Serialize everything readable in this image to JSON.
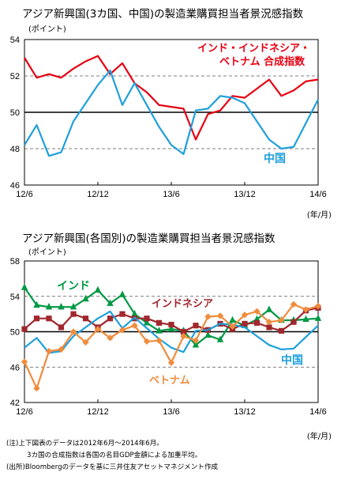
{
  "chart_data": [
    {
      "type": "line",
      "title": "アジア新興国(3カ国、中国)の製造業購買担当者景況感指数",
      "ylabel": "(ポイント)",
      "xunit": "(年/月)",
      "ylim": [
        46,
        54
      ],
      "yticks": [
        46,
        48,
        50,
        52,
        54
      ],
      "grid": "dashed at 48 and 52, solid at 50",
      "categories": [
        "12/6",
        "12/7",
        "12/8",
        "12/9",
        "12/10",
        "12/11",
        "12/12",
        "13/1",
        "13/2",
        "13/3",
        "13/4",
        "13/5",
        "13/6",
        "13/7",
        "13/8",
        "13/9",
        "13/10",
        "13/11",
        "13/12",
        "14/1",
        "14/2",
        "14/3",
        "14/4",
        "14/5",
        "14/6"
      ],
      "xticklabels": [
        "12/6",
        "12/12",
        "13/6",
        "13/12",
        "14/6"
      ],
      "series": [
        {
          "name": "インド・インドネシア・ベトナム 合成指数",
          "color": "#e60012",
          "values": [
            53.0,
            51.9,
            52.1,
            51.9,
            52.4,
            52.8,
            53.1,
            52.1,
            52.7,
            51.6,
            51.1,
            50.4,
            50.3,
            50.2,
            48.5,
            49.9,
            50.1,
            50.9,
            50.8,
            51.3,
            51.8,
            50.9,
            51.2,
            51.7,
            51.8
          ]
        },
        {
          "name": "中国",
          "color": "#1ea0dc",
          "values": [
            48.2,
            49.3,
            47.6,
            47.8,
            49.5,
            50.5,
            51.5,
            52.3,
            50.4,
            51.6,
            50.4,
            49.2,
            48.2,
            47.7,
            50.1,
            50.2,
            50.9,
            50.8,
            50.5,
            49.5,
            48.5,
            48.0,
            48.1,
            49.4,
            50.7
          ]
        }
      ]
    },
    {
      "type": "line",
      "title": "アジア新興国(各国別)の製造業購買担当者景況感指数",
      "ylabel": "(ポイント)",
      "xunit": "(年/月)",
      "ylim": [
        42,
        58
      ],
      "yticks": [
        42,
        46,
        50,
        54,
        58
      ],
      "grid": "dashed at 46 and 54, solid at 50",
      "categories": [
        "12/6",
        "12/7",
        "12/8",
        "12/9",
        "12/10",
        "12/11",
        "12/12",
        "13/1",
        "13/2",
        "13/3",
        "13/4",
        "13/5",
        "13/6",
        "13/7",
        "13/8",
        "13/9",
        "13/10",
        "13/11",
        "13/12",
        "14/1",
        "14/2",
        "14/3",
        "14/4",
        "14/5",
        "14/6"
      ],
      "xticklabels": [
        "12/6",
        "12/12",
        "13/6",
        "13/12",
        "14/6"
      ],
      "series": [
        {
          "name": "インド",
          "color": "#009944",
          "marker": "triangle",
          "values": [
            55.0,
            53.0,
            52.8,
            52.8,
            52.8,
            53.7,
            54.7,
            53.2,
            54.2,
            52.0,
            51.0,
            50.1,
            50.3,
            50.1,
            48.5,
            49.6,
            49.1,
            51.3,
            50.7,
            51.4,
            52.5,
            51.3,
            51.3,
            51.4,
            51.5
          ]
        },
        {
          "name": "インドネシア",
          "color": "#a0282d",
          "marker": "square",
          "values": [
            50.3,
            51.5,
            51.5,
            50.5,
            52.0,
            51.5,
            50.5,
            51.5,
            52.0,
            51.5,
            51.5,
            51.0,
            50.8,
            50.0,
            50.7,
            50.2,
            50.9,
            50.3,
            50.9,
            51.0,
            50.5,
            50.1,
            51.1,
            52.4,
            52.7
          ]
        },
        {
          "name": "中国",
          "color": "#1ea0dc",
          "marker": "none",
          "values": [
            48.2,
            49.3,
            47.6,
            47.8,
            49.5,
            50.5,
            51.5,
            52.3,
            50.4,
            51.6,
            50.4,
            49.2,
            48.2,
            47.7,
            50.1,
            50.2,
            50.9,
            50.8,
            50.5,
            49.5,
            48.5,
            48.0,
            48.1,
            49.4,
            50.7
          ]
        },
        {
          "name": "ベトナム",
          "color": "#f08c3c",
          "marker": "diamond",
          "values": [
            46.6,
            43.6,
            47.8,
            48.0,
            50.0,
            48.8,
            50.3,
            49.3,
            50.2,
            50.7,
            48.9,
            49.0,
            46.5,
            49.5,
            49.0,
            51.7,
            51.8,
            50.6,
            51.9,
            52.3,
            51.1,
            51.3,
            53.1,
            52.5,
            52.9
          ]
        }
      ]
    }
  ],
  "series_labels": {
    "c1_asia": [
      "インド・インドネシア・",
      "ベトナム 合成指数"
    ],
    "c1_china": "中国",
    "c2_india": "インド",
    "c2_indonesia": "インドネシア",
    "c2_china": "中国",
    "c2_vietnam": "ベトナム"
  },
  "notes": [
    "(注)上下図表のデータは2012年6月～2014年6月。",
    "3カ国の合成指数は各国の名目GDP金額による加重平均。",
    "(出所)Bloombergのデータを基に三井住友アセットマネジメント作成"
  ],
  "colors": {
    "red": "#e60012",
    "blue": "#1ea0dc",
    "green": "#009944",
    "maroon": "#a0282d",
    "orange": "#f08c3c"
  }
}
